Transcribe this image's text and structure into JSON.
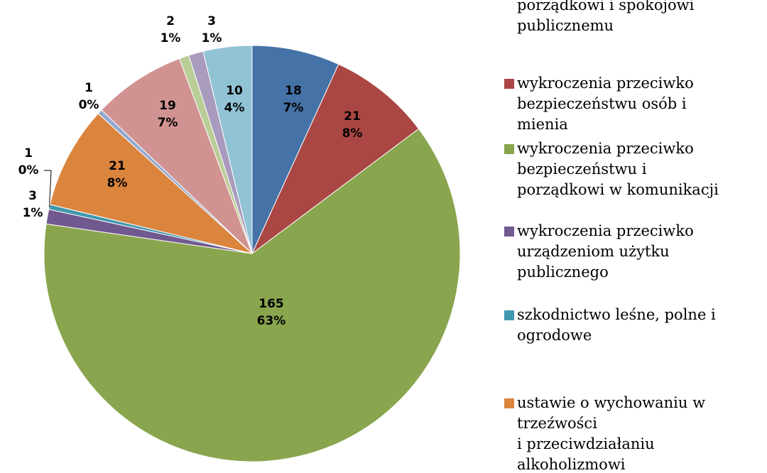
{
  "chart_data": {
    "type": "pie",
    "categories": [
      "porządkowi i spokojowi\npublicznemu",
      "wykroczenia przeciwko\nbezpieczeństwu osób i\nmienia",
      "wykroczenia przeciwko\nbezpieczeństwu i\nporządkowi w komunikacji",
      "wykroczenia przeciwko\nurządzeniom użytku\npublicznego",
      "szkodnictwo leśne, polne i\nogrodowe",
      "ustawie o wychowaniu  w\ntrzeźwości\ni przeciwdziałaniu\nalkoholizmowi",
      null,
      null,
      null,
      null,
      null
    ],
    "values": [
      18,
      21,
      165,
      3,
      1,
      21,
      1,
      19,
      2,
      3,
      10
    ],
    "percent_labels": [
      "7%",
      "8%",
      "63%",
      "1%",
      "0%",
      "8%",
      "0%",
      "7%",
      "1%",
      "1%",
      "4%"
    ],
    "colors": [
      "#4572a7",
      "#aa4643",
      "#89a54e",
      "#71588f",
      "#4198af",
      "#db843d",
      "#93a9cf",
      "#d19392",
      "#b9cd96",
      "#a99bbd",
      "#92c3d5"
    ]
  }
}
